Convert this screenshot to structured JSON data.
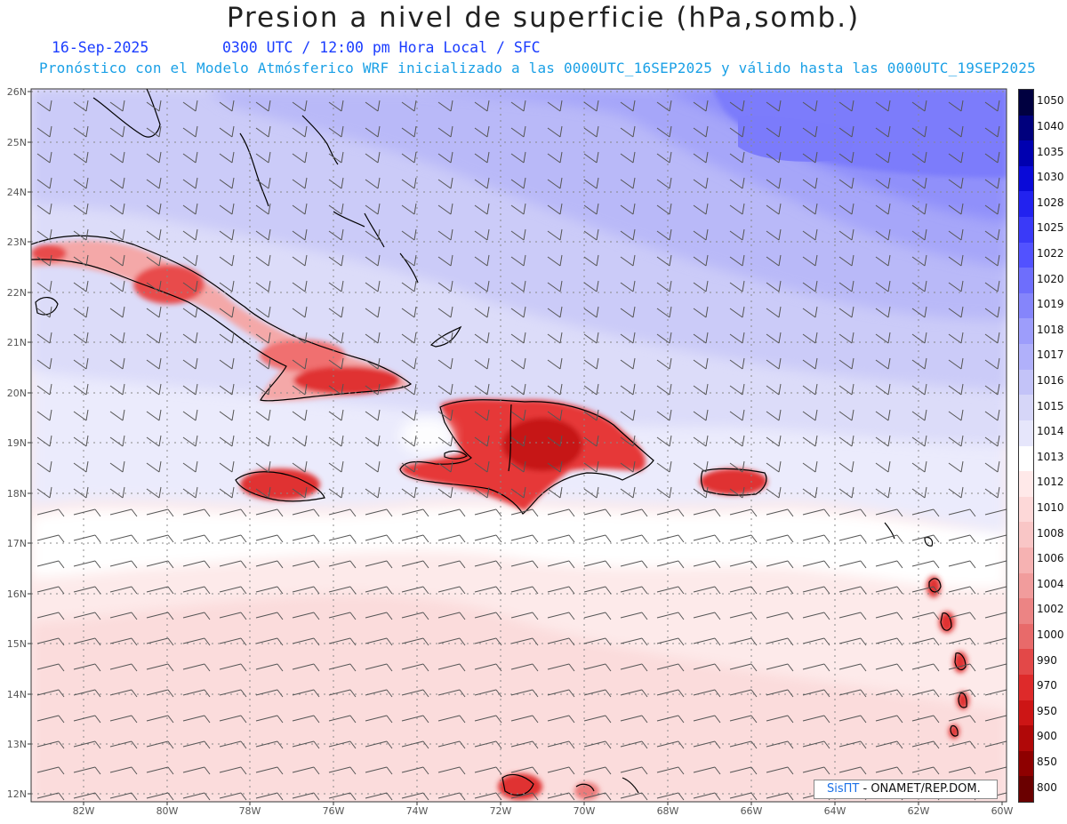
{
  "title": "Presion a nivel de superficie (hPa,somb.)",
  "date": "16-Sep-2025",
  "time_info": "0300 UTC / 12:00 pm Hora Local / SFC",
  "forecast_info": "Pronóstico con el Modelo Atmósferico WRF inicializado a las 0000UTC_16SEP2025 y válido hasta las  0000UTC_19SEP2025",
  "credit": {
    "brand": "SisПT",
    "org": "- ONAMET/REP.DOM."
  },
  "lat_labels": [
    "26N",
    "25N",
    "24N",
    "23N",
    "22N",
    "21N",
    "20N",
    "19N",
    "18N",
    "17N",
    "16N",
    "15N",
    "14N",
    "13N",
    "12N"
  ],
  "lon_labels": [
    "82W",
    "80W",
    "78W",
    "76W",
    "74W",
    "72W",
    "70W",
    "68W",
    "66W",
    "64W",
    "62W",
    "60W"
  ],
  "colorbar": {
    "levels": [
      "1050",
      "1040",
      "1035",
      "1030",
      "1028",
      "1025",
      "1022",
      "1020",
      "1019",
      "1018",
      "1017",
      "1016",
      "1015",
      "1014",
      "1013",
      "1012",
      "1010",
      "1008",
      "1006",
      "1004",
      "1002",
      "1000",
      "990",
      "970",
      "950",
      "900",
      "850",
      "800"
    ],
    "colors": [
      "#000040",
      "#00007d",
      "#0000b0",
      "#0a0ad8",
      "#2222ef",
      "#3a3af8",
      "#5252ff",
      "#6e6efc",
      "#8585fb",
      "#9d9dfb",
      "#b0b0fa",
      "#c3c3f8",
      "#d6d6f8",
      "#e6e6fb",
      "#ffffff",
      "#ffe9e9",
      "#fdd8d8",
      "#f9c6c6",
      "#f6b2b2",
      "#f19c9c",
      "#ec8484",
      "#e86a6a",
      "#e34848",
      "#de2a2a",
      "#cd1515",
      "#b00808",
      "#8e0000",
      "#6a0000"
    ]
  },
  "map": {
    "lon_range": [
      -83.2,
      -59.8
    ],
    "lat_range": [
      11.9,
      26.1
    ]
  }
}
